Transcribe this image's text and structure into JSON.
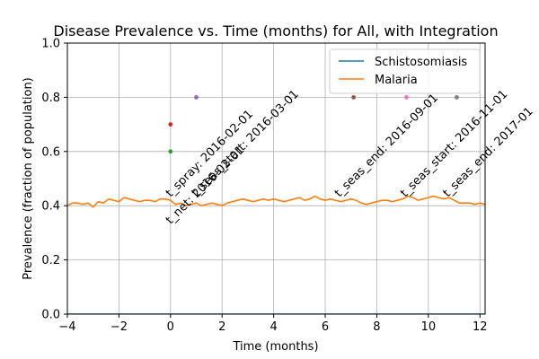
{
  "chart_data": {
    "type": "line",
    "title": "Disease Prevalence vs. Time (months) for All, with Integration",
    "xlabel": "Time (months)",
    "ylabel": "Prevalence (fraction of population)",
    "xlim": [
      -4,
      12.2
    ],
    "ylim": [
      0,
      1
    ],
    "x_ticks": [
      -4,
      -2,
      0,
      2,
      4,
      6,
      8,
      10,
      12
    ],
    "x_tick_labels": [
      "−4",
      "−2",
      "0",
      "2",
      "4",
      "6",
      "8",
      "10",
      "12"
    ],
    "y_ticks": [
      0,
      0.2,
      0.4,
      0.6,
      0.8,
      1.0
    ],
    "y_tick_labels": [
      "0.0",
      "0.2",
      "0.4",
      "0.6",
      "0.8",
      "1.0"
    ],
    "grid": true,
    "legend_position": "top-right",
    "series": [
      {
        "name": "Schistosomiasis",
        "color": "#1f77b4",
        "x": [
          -4,
          12.2
        ],
        "y": [
          0.0,
          0.0
        ]
      },
      {
        "name": "Malaria",
        "color": "#ff7f0e",
        "x": [
          -4.0,
          -3.8,
          -3.6,
          -3.4,
          -3.2,
          -3.0,
          -2.8,
          -2.6,
          -2.4,
          -2.2,
          -2.0,
          -1.8,
          -1.6,
          -1.4,
          -1.2,
          -1.0,
          -0.8,
          -0.6,
          -0.4,
          -0.2,
          0.0,
          0.2,
          0.4,
          0.6,
          0.8,
          1.0,
          1.2,
          1.4,
          1.6,
          1.8,
          2.0,
          2.2,
          2.4,
          2.6,
          2.8,
          3.0,
          3.2,
          3.4,
          3.6,
          3.8,
          4.0,
          4.2,
          4.4,
          4.6,
          4.8,
          5.0,
          5.2,
          5.4,
          5.6,
          5.8,
          6.0,
          6.2,
          6.4,
          6.6,
          6.8,
          7.0,
          7.2,
          7.4,
          7.6,
          7.8,
          8.0,
          8.2,
          8.4,
          8.6,
          8.8,
          9.0,
          9.2,
          9.4,
          9.6,
          9.8,
          10.0,
          10.2,
          10.4,
          10.6,
          10.8,
          11.0,
          11.2,
          11.4,
          11.6,
          11.8,
          12.0,
          12.2
        ],
        "y": [
          0.4,
          0.41,
          0.41,
          0.405,
          0.41,
          0.395,
          0.415,
          0.41,
          0.425,
          0.42,
          0.415,
          0.43,
          0.425,
          0.42,
          0.415,
          0.42,
          0.42,
          0.415,
          0.425,
          0.425,
          0.42,
          0.405,
          0.41,
          0.4,
          0.405,
          0.41,
          0.4,
          0.405,
          0.41,
          0.405,
          0.4,
          0.41,
          0.415,
          0.42,
          0.425,
          0.42,
          0.415,
          0.42,
          0.425,
          0.42,
          0.425,
          0.42,
          0.415,
          0.42,
          0.425,
          0.43,
          0.42,
          0.425,
          0.435,
          0.425,
          0.42,
          0.425,
          0.42,
          0.415,
          0.42,
          0.425,
          0.42,
          0.41,
          0.405,
          0.41,
          0.415,
          0.42,
          0.42,
          0.415,
          0.42,
          0.425,
          0.435,
          0.43,
          0.42,
          0.425,
          0.43,
          0.435,
          0.43,
          0.425,
          0.43,
          0.42,
          0.41,
          0.41,
          0.41,
          0.405,
          0.41,
          0.405
        ]
      }
    ],
    "markers": [
      {
        "x": 0,
        "y": 0.7,
        "color": "#d62728"
      },
      {
        "x": 0,
        "y": 0.6,
        "color": "#2ca02c"
      },
      {
        "x": 1,
        "y": 0.8,
        "color": "#9467bd"
      },
      {
        "x": 7.1,
        "y": 0.8,
        "color": "#8c564b"
      },
      {
        "x": 9.15,
        "y": 0.8,
        "color": "#e377c2"
      },
      {
        "x": 11.1,
        "y": 0.8,
        "color": "#7f7f7f"
      }
    ],
    "annotations": [
      {
        "text": "t_spray: 2016-02-01",
        "x": 0,
        "y": 0.43
      },
      {
        "text": "t_net: 2016-02-01",
        "x": 0,
        "y": 0.33
      },
      {
        "text": "t_seas_start: 2016-03-01",
        "x": 1,
        "y": 0.43
      },
      {
        "text": "t_seas_end: 2016-09-01",
        "x": 6.55,
        "y": 0.43
      },
      {
        "text": "t_seas_start: 2016-11-01",
        "x": 9.1,
        "y": 0.43
      },
      {
        "text": "t_seas_end: 2017-01",
        "x": 10.75,
        "y": 0.43
      }
    ]
  }
}
